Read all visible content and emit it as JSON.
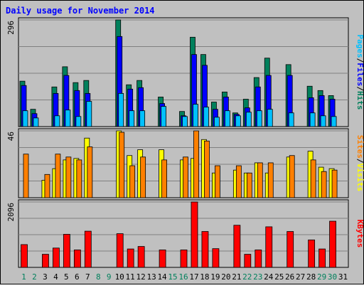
{
  "title": "Daily usage for November 2014",
  "colors": {
    "background": "#c0c0c0",
    "title": "#0000ff",
    "hits": "#00805c",
    "files": "#0000ff",
    "pages": "#00c0ff",
    "visits": "#ffff00",
    "sites": "#ff8000",
    "kbytes": "#ff0000",
    "weekday_label": "#000000",
    "weekend_label": "#00805c"
  },
  "chart_data": [
    {
      "type": "bar",
      "panel": "hits-files-pages",
      "categories": [
        "1",
        "2",
        "3",
        "4",
        "5",
        "6",
        "7",
        "8",
        "9",
        "10",
        "11",
        "12",
        "13",
        "14",
        "15",
        "16",
        "17",
        "18",
        "19",
        "20",
        "21",
        "22",
        "23",
        "24",
        "25",
        "26",
        "27",
        "28",
        "29",
        "30",
        "31"
      ],
      "ymax_label": "296",
      "ylim": [
        0,
        296
      ],
      "series": [
        {
          "name": "Hits",
          "values": [
            126,
            48,
            0,
            110,
            166,
            122,
            128,
            0,
            0,
            296,
            116,
            128,
            0,
            82,
            0,
            42,
            248,
            200,
            68,
            96,
            38,
            76,
            136,
            190,
            0,
            172,
            0,
            112,
            100,
            86,
            0
          ]
        },
        {
          "name": "Files",
          "values": [
            114,
            36,
            0,
            92,
            142,
            100,
            92,
            0,
            0,
            250,
            104,
            108,
            0,
            64,
            0,
            30,
            200,
            170,
            48,
            82,
            34,
            52,
            110,
            142,
            0,
            142,
            0,
            80,
            86,
            76,
            0
          ]
        },
        {
          "name": "Pages",
          "values": [
            44,
            24,
            0,
            30,
            46,
            28,
            70,
            0,
            0,
            92,
            44,
            44,
            0,
            56,
            0,
            28,
            62,
            54,
            26,
            44,
            30,
            40,
            44,
            48,
            0,
            38,
            0,
            38,
            30,
            28,
            0
          ]
        }
      ],
      "legend": [
        "Pages",
        "/",
        "Files",
        "/",
        "Hits"
      ]
    },
    {
      "type": "bar",
      "panel": "visits-sites",
      "categories": [
        "1",
        "2",
        "3",
        "4",
        "5",
        "6",
        "7",
        "8",
        "9",
        "10",
        "11",
        "12",
        "13",
        "14",
        "15",
        "16",
        "17",
        "18",
        "19",
        "20",
        "21",
        "22",
        "23",
        "24",
        "25",
        "26",
        "27",
        "28",
        "29",
        "30",
        "31"
      ],
      "ymax_label": "46",
      "ylim": [
        0,
        46
      ],
      "series": [
        {
          "name": "Visits",
          "values": [
            0,
            0,
            12,
            20,
            26,
            27,
            41,
            0,
            0,
            46,
            29,
            33,
            0,
            33,
            0,
            26,
            27,
            40,
            17,
            0,
            19,
            17,
            24,
            17,
            0,
            28,
            0,
            32,
            21,
            20,
            0
          ]
        },
        {
          "name": "Sites",
          "values": [
            30,
            0,
            16,
            30,
            28,
            26,
            35,
            0,
            0,
            45,
            22,
            28,
            0,
            26,
            0,
            28,
            46,
            39,
            22,
            0,
            22,
            17,
            24,
            24,
            0,
            29,
            0,
            26,
            18,
            19,
            0
          ]
        }
      ],
      "legend": [
        "Sites",
        "/",
        "Visits"
      ]
    },
    {
      "type": "bar",
      "panel": "kbytes",
      "categories": [
        "1",
        "2",
        "3",
        "4",
        "5",
        "6",
        "7",
        "8",
        "9",
        "10",
        "11",
        "12",
        "13",
        "14",
        "15",
        "16",
        "17",
        "18",
        "19",
        "20",
        "21",
        "22",
        "23",
        "24",
        "25",
        "26",
        "27",
        "28",
        "29",
        "30",
        "31"
      ],
      "ymax_label": "2096",
      "ylim": [
        0,
        2096
      ],
      "series": [
        {
          "name": "KBytes",
          "values": [
            730,
            0,
            420,
            620,
            1060,
            560,
            1160,
            0,
            0,
            1080,
            590,
            670,
            0,
            560,
            0,
            560,
            2096,
            1150,
            600,
            0,
            1350,
            420,
            560,
            1300,
            0,
            1150,
            0,
            880,
            590,
            1480,
            0
          ]
        }
      ],
      "legend": [
        "KBytes"
      ]
    }
  ],
  "weekend_days": [
    "1",
    "2",
    "8",
    "9",
    "15",
    "16",
    "22",
    "23",
    "29",
    "30"
  ]
}
